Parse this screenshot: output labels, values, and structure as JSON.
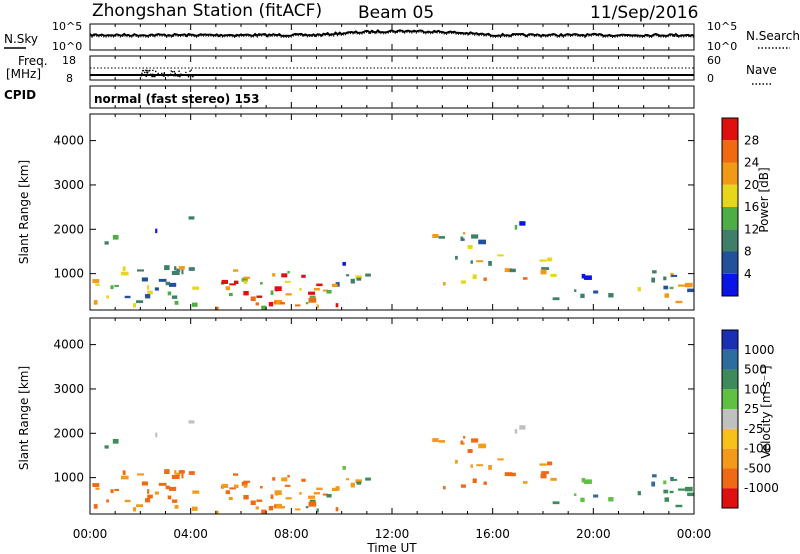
{
  "header": {
    "station": "Zhongshan Station (fitACF)",
    "beam": "Beam 05",
    "date": "11/Sep/2016"
  },
  "panels": {
    "nsky": {
      "label": "N.Sky",
      "ticks_left": [
        "10^5",
        "10^0"
      ]
    },
    "nsearch": {
      "label": "N.Search",
      "ticks_right": [
        "10^5",
        "10^0"
      ]
    },
    "freq": {
      "label_line1": "Freq.",
      "label_line2": "[MHz]",
      "ticks_left": [
        "18",
        "8"
      ]
    },
    "nave": {
      "label": "Nave",
      "ticks_right": [
        "60",
        "0"
      ]
    },
    "cpid": {
      "label": "CPID",
      "text": "normal (fast stereo) 153"
    }
  },
  "colors": {
    "power": [
      "#0a14e6",
      "#22509a",
      "#3f7f6a",
      "#4fae43",
      "#e7d61a",
      "#f29a18",
      "#ef6a10",
      "#e01010"
    ],
    "velocity_pos": [
      "#1a2fb3",
      "#2e6b9e",
      "#3e8a5a",
      "#5fc043",
      "#c0c0c0"
    ],
    "velocity_neg": [
      "#f6c21a",
      "#f39a1a",
      "#ee6a14",
      "#e01010"
    ]
  },
  "chart_data": [
    {
      "type": "heatmap",
      "title": "Power",
      "ylabel": "Slant Range [km]",
      "ylim": [
        180,
        4600
      ],
      "yticks": [
        "1000",
        "2000",
        "3000",
        "4000"
      ],
      "colorbar_label": "Power [dB]",
      "colorbar_ticks": [
        "4",
        "8",
        "12",
        "16",
        "20",
        "24",
        "28"
      ]
    },
    {
      "type": "heatmap",
      "title": "Velocity",
      "ylabel": "Slant Range [km]",
      "xlabel": "Time UT",
      "xlim": [
        "00:00",
        "24:00"
      ],
      "xticks": [
        "00:00",
        "04:00",
        "08:00",
        "12:00",
        "16:00",
        "20:00",
        "00:00"
      ],
      "ylim": [
        180,
        4600
      ],
      "yticks": [
        "1000",
        "2000",
        "3000",
        "4000"
      ],
      "colorbar_label": "Velocity [m s⁻¹]",
      "colorbar_ticks": [
        "1000",
        "500",
        "100",
        "25",
        "-25",
        "-100",
        "-500",
        "-1000"
      ]
    }
  ]
}
